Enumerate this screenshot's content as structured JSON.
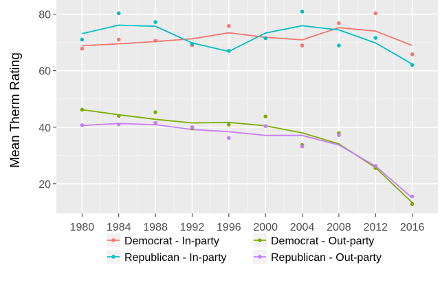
{
  "chart_data": {
    "type": "line",
    "title": "",
    "xlabel": "",
    "ylabel": "Mean Therm Rating",
    "x": [
      1980,
      1984,
      1988,
      1992,
      1996,
      2000,
      2004,
      2008,
      2012,
      2016
    ],
    "x_tick_labels": [
      "1980",
      "1984",
      "1988",
      "1992",
      "1996",
      "2000",
      "2004",
      "2008",
      "2012",
      "2016"
    ],
    "y_ticks": [
      20,
      40,
      60,
      80
    ],
    "y_tick_labels": [
      "20",
      "40",
      "60",
      "80"
    ],
    "xlim": [
      1977.2,
      2018.8
    ],
    "ylim": [
      9.5,
      85
    ],
    "grid": true,
    "legend_position": "bottom",
    "background": "#ebebeb",
    "series": [
      {
        "name": "Democrat - In-party",
        "color": "#F8766D",
        "points": [
          67.8,
          71.0,
          70.6,
          69.0,
          75.8,
          71.5,
          68.9,
          76.8,
          80.3,
          65.8
        ],
        "smooth": [
          68.8,
          69.5,
          70.3,
          71.3,
          73.4,
          71.8,
          70.9,
          75.2,
          74.0,
          68.9
        ]
      },
      {
        "name": "Republican - In-party",
        "color": "#00BFC4",
        "points": [
          71.0,
          80.3,
          77.2,
          69.5,
          67.0,
          71.5,
          80.9,
          68.9,
          71.6,
          62.0
        ],
        "smooth": [
          73.1,
          76.1,
          75.7,
          69.8,
          66.8,
          73.3,
          75.9,
          74.4,
          69.8,
          62.3
        ]
      },
      {
        "name": "Democrat - Out-party",
        "color": "#7CAE00",
        "points": [
          46.2,
          44.0,
          45.3,
          39.5,
          40.9,
          43.8,
          33.7,
          37.9,
          25.5,
          12.8
        ],
        "smooth": [
          46.2,
          44.4,
          42.8,
          41.5,
          41.7,
          40.5,
          38.0,
          34.1,
          25.7,
          13.3
        ]
      },
      {
        "name": "Republican - Out-party",
        "color": "#C77CFF",
        "points": [
          40.7,
          41.0,
          41.5,
          40.0,
          36.2,
          40.4,
          33.2,
          37.2,
          26.3,
          15.5
        ],
        "smooth": [
          40.6,
          41.3,
          40.9,
          39.2,
          38.4,
          37.1,
          37.1,
          33.7,
          26.2,
          15.0
        ]
      }
    ]
  }
}
